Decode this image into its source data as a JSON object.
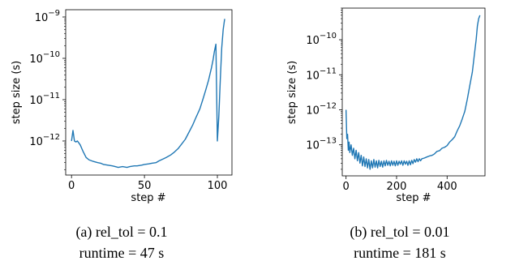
{
  "chart_data": [
    {
      "type": "line",
      "title": "",
      "xlabel": "step #",
      "ylabel": "step size (s)",
      "yscale": "log",
      "xlim": [
        -4,
        110
      ],
      "ylim": [
        1.5e-13,
        1.5e-09
      ],
      "xticks": [
        0,
        50,
        100
      ],
      "xtick_labels": [
        "0",
        "50",
        "100"
      ],
      "yticks": [
        1e-12,
        1e-11,
        1e-10,
        1e-09
      ],
      "ytick_labels": [
        "10^-12",
        "10^-11",
        "10^-10",
        "10^-9"
      ],
      "grid": false,
      "series": [
        {
          "color": "#1f77b4",
          "x": [
            0,
            1,
            2,
            3,
            4,
            5,
            6,
            8,
            10,
            12,
            15,
            18,
            20,
            22,
            25,
            28,
            30,
            32,
            35,
            38,
            40,
            43,
            45,
            48,
            50,
            53,
            55,
            58,
            60,
            63,
            65,
            68,
            70,
            73,
            75,
            78,
            80,
            83,
            85,
            88,
            90,
            92,
            94,
            96,
            97,
            98,
            99,
            100,
            101,
            102,
            103,
            104,
            105
          ],
          "y": [
            1e-12,
            1.8e-12,
            1e-12,
            9.5e-13,
            1e-12,
            9e-13,
            8e-13,
            5.5e-13,
            4e-13,
            3.5e-13,
            3.2e-13,
            3e-13,
            2.9e-13,
            2.7e-13,
            2.6e-13,
            2.5e-13,
            2.4e-13,
            2.3e-13,
            2.4e-13,
            2.3e-13,
            2.4e-13,
            2.5e-13,
            2.5e-13,
            2.6e-13,
            2.7e-13,
            2.8e-13,
            2.9e-13,
            3e-13,
            3.3e-13,
            3.7e-13,
            4e-13,
            4.6e-13,
            5.2e-13,
            6.5e-13,
            8e-13,
            1.1e-12,
            1.5e-12,
            2.4e-12,
            3.5e-12,
            6e-12,
            1e-11,
            1.7e-11,
            3e-11,
            6e-11,
            9e-11,
            1.5e-10,
            2.2e-10,
            1e-12,
            4e-12,
            3e-11,
            1.8e-10,
            5e-10,
            9e-10
          ]
        }
      ],
      "caption_line1": "(a) rel_tol = 0.1",
      "caption_line2": "runtime = 47 s"
    },
    {
      "type": "line",
      "title": "",
      "xlabel": "step #",
      "ylabel": "step size (s)",
      "yscale": "log",
      "xlim": [
        -15,
        550
      ],
      "ylim": [
        1.3e-14,
        8e-10
      ],
      "xticks": [
        0,
        200,
        400
      ],
      "xtick_labels": [
        "0",
        "200",
        "400"
      ],
      "yticks": [
        1e-13,
        1e-12,
        1e-11,
        1e-10
      ],
      "ytick_labels": [
        "10^-13",
        "10^-12",
        "10^-11",
        "10^-10"
      ],
      "grid": false,
      "series": [
        {
          "color": "#1f77b4",
          "x": [
            0,
            3,
            6,
            9,
            12,
            15,
            20,
            25,
            30,
            35,
            40,
            45,
            50,
            55,
            60,
            65,
            70,
            75,
            80,
            85,
            90,
            95,
            100,
            105,
            110,
            115,
            120,
            125,
            130,
            135,
            140,
            145,
            150,
            155,
            160,
            165,
            170,
            175,
            180,
            185,
            190,
            195,
            200,
            205,
            210,
            215,
            220,
            225,
            230,
            235,
            240,
            245,
            250,
            255,
            260,
            265,
            270,
            275,
            280,
            285,
            290,
            295,
            300,
            310,
            320,
            330,
            340,
            350,
            360,
            370,
            380,
            390,
            400,
            410,
            420,
            430,
            440,
            450,
            460,
            470,
            480,
            490,
            500,
            510,
            515,
            520,
            525,
            530
          ],
          "y": [
            1e-12,
            1.5e-13,
            2e-13,
            7e-14,
            1.2e-13,
            6e-14,
            1e-13,
            5e-14,
            8e-14,
            4e-14,
            7e-14,
            3.5e-14,
            6e-14,
            3e-14,
            5e-14,
            2.5e-14,
            4.5e-14,
            2.4e-14,
            4e-14,
            2.2e-14,
            3.8e-14,
            2e-14,
            3.5e-14,
            2.2e-14,
            3.8e-14,
            2.3e-14,
            3.5e-14,
            2.2e-14,
            3.6e-14,
            2.4e-14,
            3.4e-14,
            2.3e-14,
            3.5e-14,
            2.5e-14,
            3.6e-14,
            2.6e-14,
            3.4e-14,
            2.5e-14,
            3.5e-14,
            2.6e-14,
            3.4e-14,
            2.5e-14,
            3.5e-14,
            2.6e-14,
            3.4e-14,
            2.8e-14,
            3.5e-14,
            2.6e-14,
            3.5e-14,
            2.8e-14,
            3.4e-14,
            2.6e-14,
            3.5e-14,
            2.7e-14,
            3.6e-14,
            2.9e-14,
            3.8e-14,
            3.2e-14,
            4e-14,
            3.3e-14,
            4e-14,
            3.5e-14,
            4e-14,
            4.2e-14,
            4.5e-14,
            4.8e-14,
            5e-14,
            5.5e-14,
            6.5e-14,
            6.8e-14,
            8e-14,
            8.5e-14,
            9.5e-14,
            1.2e-13,
            1.4e-13,
            1.7e-13,
            2.5e-13,
            3.5e-13,
            5.5e-13,
            9e-13,
            2e-12,
            5e-12,
            1.2e-11,
            5e-11,
            1e-10,
            2.5e-10,
            4e-10,
            5e-10
          ]
        }
      ],
      "caption_line1": "(b) rel_tol = 0.01",
      "caption_line2": "runtime = 181 s"
    }
  ]
}
